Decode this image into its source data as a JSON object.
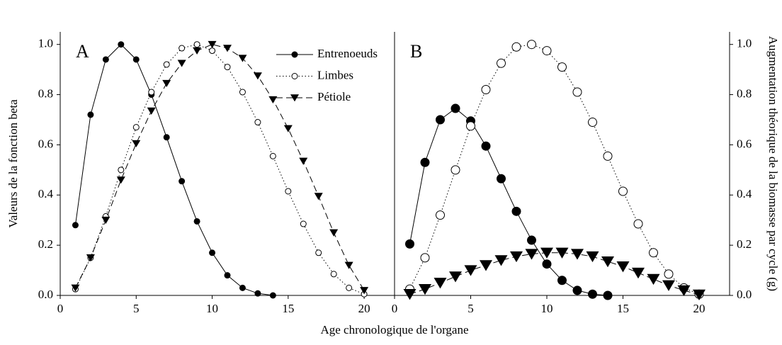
{
  "chart_data": [
    {
      "type": "line",
      "panel_label": "A",
      "y_label": "Valeurs de la fonction beta",
      "x_label": "Age chronologique de l'organe",
      "x": [
        1,
        2,
        3,
        4,
        5,
        6,
        7,
        8,
        9,
        10,
        11,
        12,
        13,
        14,
        15,
        16,
        17,
        18,
        19,
        20
      ],
      "xlim": [
        0,
        22
      ],
      "xticks": [
        0,
        5,
        10,
        15,
        20
      ],
      "ylim": [
        0,
        1.05
      ],
      "yticks": [
        {
          "value": 0,
          "label": "0.0"
        },
        0.2,
        0.4,
        0.6,
        0.8,
        {
          "value": 1,
          "label": "1.0"
        }
      ],
      "legend": "top-right",
      "series": [
        {
          "name": "Entrenoeuds",
          "color": "#000000",
          "line_style": "solid",
          "marker": "circle",
          "values": [
            0.28,
            0.72,
            0.94,
            1.0,
            0.94,
            0.8,
            0.63,
            0.455,
            0.295,
            0.17,
            0.08,
            0.03,
            0.008,
            0.0,
            null,
            null,
            null,
            null,
            null,
            null
          ]
        },
        {
          "name": "Limbes",
          "color": "#000000",
          "line_style": "dotted",
          "marker": "circle-open",
          "values": [
            0.025,
            0.15,
            0.315,
            0.5,
            0.67,
            0.81,
            0.92,
            0.985,
            1.0,
            0.975,
            0.91,
            0.81,
            0.69,
            0.555,
            0.415,
            0.285,
            0.17,
            0.085,
            0.03,
            0.005
          ]
        },
        {
          "name": "Pétiole",
          "color": "#000000",
          "line_style": "dashed",
          "marker": "triangle-down",
          "values": [
            0.03,
            0.15,
            0.3,
            0.46,
            0.605,
            0.735,
            0.845,
            0.925,
            0.975,
            1.0,
            0.985,
            0.945,
            0.875,
            0.78,
            0.665,
            0.535,
            0.395,
            0.25,
            0.12,
            0.02
          ]
        }
      ]
    },
    {
      "type": "line",
      "panel_label": "B",
      "y_label": "Augmentation théorique de la biomasse par cycle (g)",
      "x": [
        1,
        2,
        3,
        4,
        5,
        6,
        7,
        8,
        9,
        10,
        11,
        12,
        13,
        14,
        15,
        16,
        17,
        18,
        19,
        20
      ],
      "xlim": [
        0,
        22
      ],
      "xticks": [
        0,
        5,
        10,
        15,
        20
      ],
      "ylim": [
        0,
        1.05
      ],
      "yticks": [
        {
          "value": 0,
          "label": "0.0"
        },
        0.2,
        0.4,
        0.6,
        0.8,
        {
          "value": 1,
          "label": "1.0"
        }
      ],
      "series": [
        {
          "color": "#000000",
          "line_style": "solid",
          "marker": "circle",
          "values": [
            0.205,
            0.53,
            0.7,
            0.745,
            0.695,
            0.595,
            0.465,
            0.335,
            0.22,
            0.125,
            0.06,
            0.02,
            0.005,
            0.0,
            null,
            null,
            null,
            null,
            null,
            null
          ]
        },
        {
          "color": "#000000",
          "line_style": "dotted",
          "marker": "circle-open",
          "values": [
            0.025,
            0.15,
            0.32,
            0.5,
            0.675,
            0.82,
            0.925,
            0.99,
            1.0,
            0.975,
            0.91,
            0.81,
            0.69,
            0.555,
            0.415,
            0.285,
            0.17,
            0.085,
            0.03,
            0.005
          ]
        },
        {
          "color": "#000000",
          "line_style": "dashed",
          "marker": "triangle-down",
          "values": [
            0.005,
            0.025,
            0.05,
            0.075,
            0.1,
            0.12,
            0.14,
            0.155,
            0.165,
            0.17,
            0.17,
            0.165,
            0.155,
            0.135,
            0.115,
            0.09,
            0.065,
            0.04,
            0.02,
            0.003
          ]
        }
      ]
    }
  ]
}
